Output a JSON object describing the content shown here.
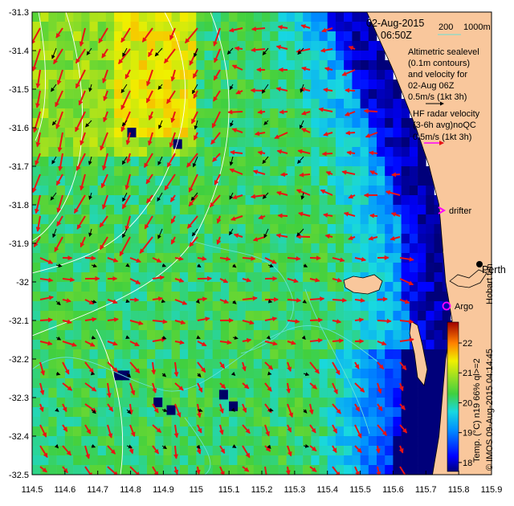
{
  "map": {
    "date": "02-Aug-2015",
    "time": "06:50Z",
    "isobath_200": "200",
    "isobath_1000": "1000m",
    "altimetry_lines": [
      "Altimetric sealevel",
      "(0.1m contours)",
      "and velocity for",
      "02-Aug 06Z"
    ],
    "altimetry_scale": "0.5m/s (1kt 3h)",
    "hf_lines": [
      "HF radar velocity",
      "(3-6h avg)noQC"
    ],
    "hf_scale": "0.5m/s (1kt 3h)",
    "drifter_label": "drifter",
    "perth_label": "Perth",
    "hobart_label": "Hobart tim",
    "argo_label": "Argo",
    "colorbar_label": "Temp. (°C) n19 66% ql>=2",
    "credit": "© IMOS 09-Aug-2015 04:14:45",
    "colorbar_ticks": [
      "22",
      "21",
      "20",
      "19",
      "18"
    ],
    "x_ticks": [
      "114.5",
      "114.6",
      "114.7",
      "114.8",
      "114.9",
      "115",
      "115.1",
      "115.2",
      "115.3",
      "115.4",
      "115.5",
      "115.6",
      "115.7",
      "115.8",
      "115.9"
    ],
    "y_ticks": [
      "-31.3",
      "-31.4",
      "-31.5",
      "-31.6",
      "-31.7",
      "-31.8",
      "-31.9",
      "-32",
      "-32.1",
      "-32.2",
      "-32.3",
      "-32.4",
      "-32.5"
    ],
    "lon_range": [
      114.5,
      115.9
    ],
    "lat_range": [
      -32.5,
      -31.3
    ],
    "temp_range": [
      17.7,
      22.7
    ],
    "colors": {
      "land": "#f9c79c",
      "hf_arrow": "#e81414",
      "alt_arrow": "#000000",
      "contour": "#ffffff",
      "isobath": "#66e0d9",
      "magenta": "#ff00ff"
    }
  }
}
